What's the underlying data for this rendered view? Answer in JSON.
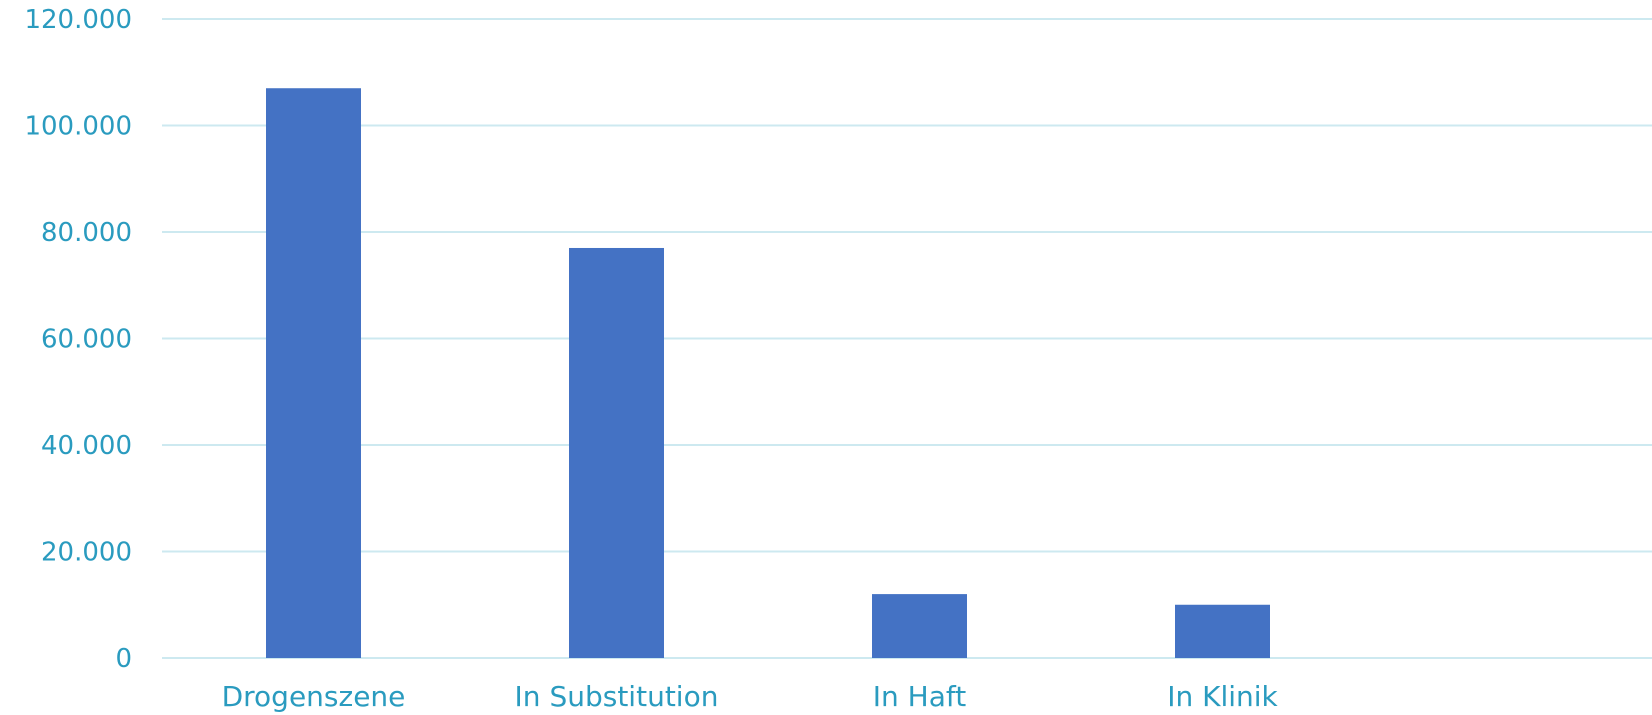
{
  "chart_data": {
    "type": "bar",
    "categories": [
      "Drogenszene",
      "In Substitution",
      "In Haft",
      "In Klinik"
    ],
    "values": [
      107000,
      77000,
      12000,
      10000
    ],
    "ylim": [
      0,
      120000
    ],
    "yticks": [
      0,
      20000,
      40000,
      60000,
      80000,
      100000,
      120000
    ],
    "ytick_labels": [
      "0",
      "20.000",
      "40.000",
      "60.000",
      "80.000",
      "100.000",
      "120.000"
    ],
    "title": "",
    "xlabel": "",
    "ylabel": "",
    "grid": true,
    "legend": "none",
    "colors": {
      "bar": "#4472c4",
      "grid": "#cde9f0",
      "text": "#2a9bbf"
    }
  }
}
